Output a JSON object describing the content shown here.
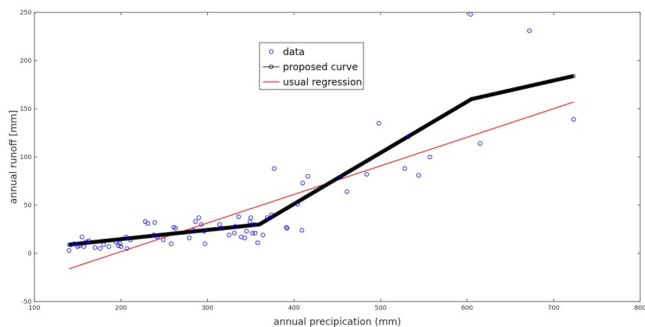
{
  "chart_data": {
    "type": "scatter",
    "xlabel": "annual precipication (mm)",
    "ylabel": "annual runoff [mm]",
    "xlim": [
      100,
      800
    ],
    "ylim": [
      -50,
      250
    ],
    "xticks": [
      "100",
      "200",
      "300",
      "400",
      "500",
      "600",
      "700",
      "800"
    ],
    "yticks": [
      "-50",
      "0",
      "50",
      "100",
      "150",
      "200",
      "250"
    ],
    "grid": false,
    "legend_position": "top-center",
    "colors": {
      "data": "#0000ff",
      "proposed": "#000000",
      "regression": "#ff0000"
    },
    "series": [
      {
        "name": "data",
        "kind": "markers",
        "points": [
          [
            140,
            3
          ],
          [
            142,
            9
          ],
          [
            146,
            10
          ],
          [
            150,
            7
          ],
          [
            152,
            8
          ],
          [
            155,
            17
          ],
          [
            157,
            7
          ],
          [
            160,
            12
          ],
          [
            163,
            13
          ],
          [
            170,
            6
          ],
          [
            176,
            5
          ],
          [
            180,
            9
          ],
          [
            186,
            7
          ],
          [
            194,
            12
          ],
          [
            197,
            8
          ],
          [
            199,
            10
          ],
          [
            200,
            7
          ],
          [
            206,
            17
          ],
          [
            207,
            5
          ],
          [
            211,
            14
          ],
          [
            228,
            33
          ],
          [
            231,
            31
          ],
          [
            238,
            19
          ],
          [
            239,
            32
          ],
          [
            242,
            17
          ],
          [
            249,
            14
          ],
          [
            258,
            10
          ],
          [
            261,
            27
          ],
          [
            263,
            26
          ],
          [
            279,
            16
          ],
          [
            284,
            24
          ],
          [
            286,
            33
          ],
          [
            290,
            37
          ],
          [
            293,
            30
          ],
          [
            296,
            23
          ],
          [
            297,
            10
          ],
          [
            314,
            30
          ],
          [
            317,
            26
          ],
          [
            325,
            19
          ],
          [
            331,
            21
          ],
          [
            332,
            28
          ],
          [
            336,
            38
          ],
          [
            339,
            17
          ],
          [
            343,
            16
          ],
          [
            345,
            23
          ],
          [
            349,
            33
          ],
          [
            350,
            37
          ],
          [
            352,
            21
          ],
          [
            354,
            30
          ],
          [
            355,
            21
          ],
          [
            358,
            11
          ],
          [
            364,
            19
          ],
          [
            369,
            37
          ],
          [
            374,
            40
          ],
          [
            377,
            88
          ],
          [
            391,
            27
          ],
          [
            392,
            26
          ],
          [
            404,
            51
          ],
          [
            409,
            24
          ],
          [
            410,
            73
          ],
          [
            416,
            80
          ],
          [
            454,
            79
          ],
          [
            461,
            64
          ],
          [
            484,
            82
          ],
          [
            498,
            135
          ],
          [
            528,
            88
          ],
          [
            532,
            121
          ],
          [
            544,
            81
          ],
          [
            557,
            100
          ],
          [
            604,
            248
          ],
          [
            615,
            114
          ],
          [
            672,
            231
          ],
          [
            723,
            139
          ]
        ]
      },
      {
        "name": "proposed curve",
        "kind": "line-with-markers",
        "points": [
          [
            140,
            9
          ],
          [
            360,
            30
          ],
          [
            605,
            160
          ],
          [
            723,
            184
          ]
        ]
      },
      {
        "name": "usual regression",
        "kind": "line",
        "points": [
          [
            140,
            -16
          ],
          [
            723,
            157
          ]
        ]
      }
    ]
  }
}
